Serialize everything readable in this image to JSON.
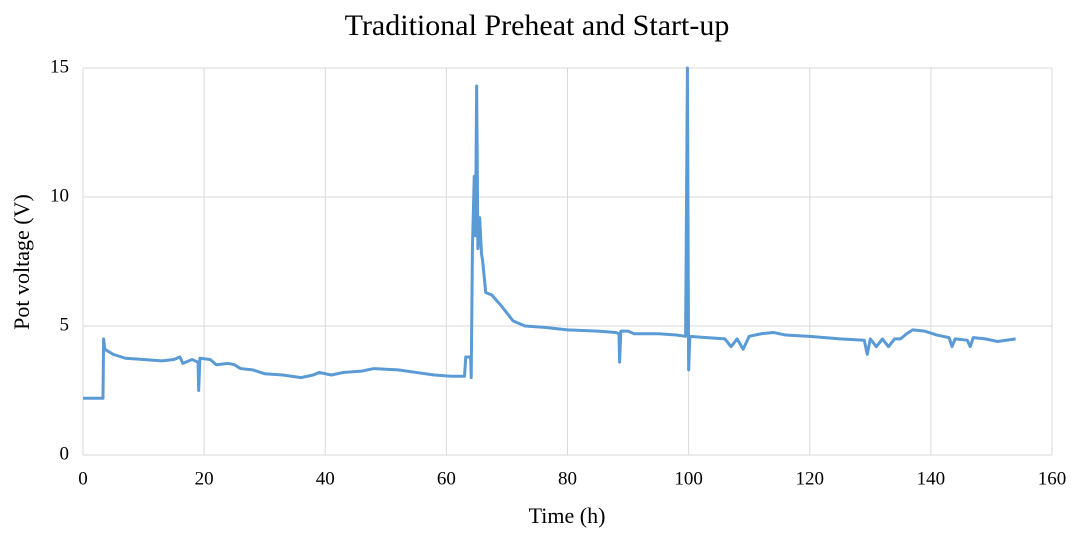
{
  "chart_data": {
    "type": "line",
    "title": "Traditional Preheat and Start-up",
    "x_label": "Time (h)",
    "y_label": "Pot voltage (V)",
    "color": "#5b9bd5",
    "grid": true,
    "xlim": [
      0,
      160
    ],
    "xticks": [
      0,
      20,
      40,
      60,
      80,
      100,
      120,
      140,
      160
    ],
    "ylim": [
      0,
      15
    ],
    "yticks": [
      0,
      5,
      10,
      15
    ],
    "x": [
      0,
      3.3,
      3.4,
      3.6,
      5,
      7,
      10,
      13,
      15,
      16,
      16.5,
      18,
      19,
      19.1,
      19.3,
      21,
      22,
      24,
      25,
      26,
      28,
      30,
      33,
      36,
      38,
      39,
      41,
      43,
      46,
      48,
      52,
      55,
      58,
      61,
      63,
      63.2,
      64,
      64.1,
      64.3,
      64.6,
      64.8,
      65,
      65.2,
      65.5,
      65.8,
      66,
      66.5,
      67.5,
      69,
      70,
      71,
      73,
      76,
      80,
      85,
      88,
      88.5,
      88.6,
      88.8,
      90,
      91,
      95,
      98,
      99.5,
      99.8,
      100,
      100.2,
      103,
      106,
      107,
      108,
      109,
      110,
      112,
      114,
      116,
      120,
      125,
      129,
      129.5,
      130,
      131,
      132,
      133,
      134,
      135,
      136,
      137,
      139,
      141,
      143,
      143.5,
      144,
      146,
      146.5,
      147,
      149,
      151,
      154
    ],
    "values": [
      2.2,
      2.2,
      4.5,
      4.1,
      3.9,
      3.75,
      3.7,
      3.65,
      3.7,
      3.8,
      3.55,
      3.7,
      3.6,
      2.5,
      3.75,
      3.7,
      3.5,
      3.55,
      3.5,
      3.35,
      3.3,
      3.15,
      3.1,
      3.0,
      3.1,
      3.2,
      3.1,
      3.2,
      3.25,
      3.35,
      3.3,
      3.2,
      3.1,
      3.05,
      3.05,
      3.8,
      3.8,
      3.0,
      8.0,
      10.8,
      8.5,
      14.3,
      8.0,
      9.2,
      7.8,
      7.5,
      6.3,
      6.2,
      5.8,
      5.5,
      5.2,
      5.0,
      4.95,
      4.85,
      4.8,
      4.75,
      4.7,
      3.6,
      4.8,
      4.8,
      4.7,
      4.7,
      4.65,
      4.6,
      15,
      3.3,
      4.6,
      4.55,
      4.5,
      4.2,
      4.5,
      4.1,
      4.6,
      4.7,
      4.75,
      4.65,
      4.6,
      4.5,
      4.45,
      3.9,
      4.5,
      4.2,
      4.5,
      4.2,
      4.5,
      4.5,
      4.7,
      4.85,
      4.8,
      4.65,
      4.55,
      4.2,
      4.5,
      4.45,
      4.2,
      4.55,
      4.5,
      4.4,
      4.5
    ]
  }
}
